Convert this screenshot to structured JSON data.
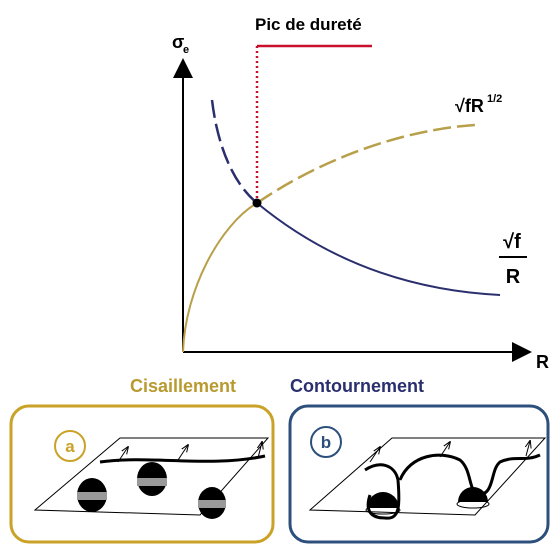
{
  "graph": {
    "peak_label": "Pic de dureté",
    "y_label": "σ",
    "y_label_sub": "e",
    "x_label": "R",
    "shear_curve_label": "√fR",
    "shear_curve_exp": "1/2",
    "bypass_numerator": "√f",
    "bypass_denominator": "R"
  },
  "legend": {
    "shear": "Cisaillement",
    "bypass": "Contournement"
  },
  "panels": [
    {
      "label": "a"
    },
    {
      "label": "b"
    }
  ]
}
